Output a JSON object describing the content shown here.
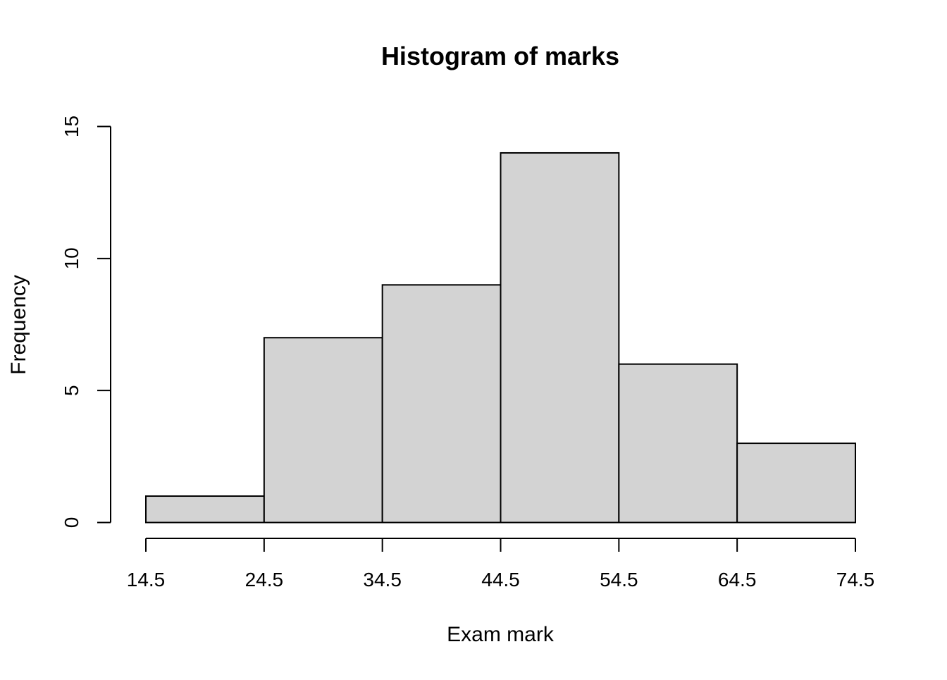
{
  "chart_data": {
    "type": "bar",
    "title": "Histogram of marks",
    "xlabel": "Exam mark",
    "ylabel": "Frequency",
    "bins": [
      {
        "from": 14.5,
        "to": 24.5,
        "count": 1
      },
      {
        "from": 24.5,
        "to": 34.5,
        "count": 7
      },
      {
        "from": 34.5,
        "to": 44.5,
        "count": 9
      },
      {
        "from": 44.5,
        "to": 54.5,
        "count": 14
      },
      {
        "from": 54.5,
        "to": 64.5,
        "count": 6
      },
      {
        "from": 64.5,
        "to": 74.5,
        "count": 3
      }
    ],
    "x_ticks": [
      "14.5",
      "24.5",
      "34.5",
      "44.5",
      "54.5",
      "64.5",
      "74.5"
    ],
    "y_ticks": [
      "0",
      "5",
      "10",
      "15"
    ],
    "xlim": [
      14.5,
      74.5
    ],
    "ylim": [
      0,
      15
    ],
    "grid": false,
    "colors": {
      "bar_fill": "#d3d3d3",
      "bar_stroke": "#000000"
    }
  }
}
